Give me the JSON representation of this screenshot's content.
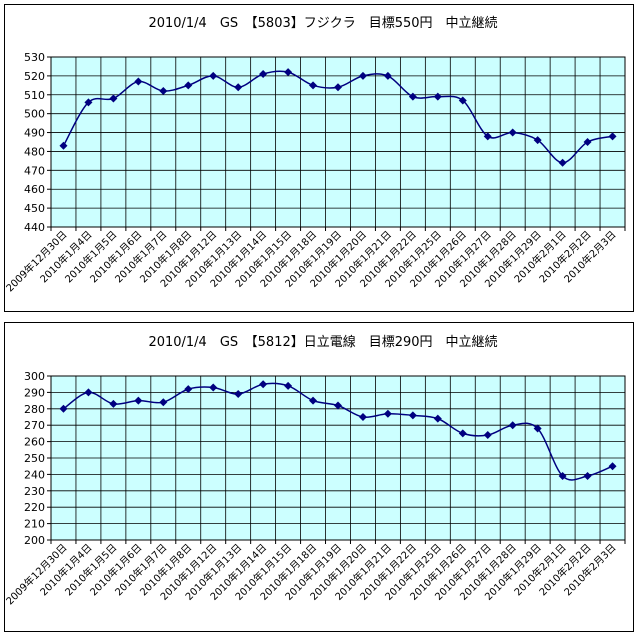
{
  "colors": {
    "plot_bg": "#ccffff",
    "grid": "#000000",
    "line": "#000080",
    "marker": "#000080"
  },
  "chart_data": [
    {
      "type": "line",
      "title": "2010/1/4　GS　【5803】フジクラ　目標550円　中立継続",
      "categories": [
        "2009年12月30日",
        "2010年1月4日",
        "2010年1月5日",
        "2010年1月6日",
        "2010年1月7日",
        "2010年1月8日",
        "2010年1月12日",
        "2010年1月13日",
        "2010年1月14日",
        "2010年1月15日",
        "2010年1月18日",
        "2010年1月19日",
        "2010年1月20日",
        "2010年1月21日",
        "2010年1月22日",
        "2010年1月25日",
        "2010年1月26日",
        "2010年1月27日",
        "2010年1月28日",
        "2010年1月29日",
        "2010年2月1日",
        "2010年2月2日",
        "2010年2月3日"
      ],
      "values": [
        483,
        506,
        508,
        517,
        512,
        515,
        520,
        514,
        521,
        522,
        515,
        514,
        520,
        520,
        509,
        509,
        507,
        488,
        490,
        486,
        474,
        485,
        488
      ],
      "ylim": [
        440,
        530
      ],
      "yticks": [
        440,
        450,
        460,
        470,
        480,
        490,
        500,
        510,
        520,
        530
      ],
      "grid": true,
      "legend": "none"
    },
    {
      "type": "line",
      "title": "2010/1/4　GS　【5812】日立電線　目標290円　中立継続",
      "categories": [
        "2009年12月30日",
        "2010年1月4日",
        "2010年1月5日",
        "2010年1月6日",
        "2010年1月7日",
        "2010年1月8日",
        "2010年1月12日",
        "2010年1月13日",
        "2010年1月14日",
        "2010年1月15日",
        "2010年1月18日",
        "2010年1月19日",
        "2010年1月20日",
        "2010年1月21日",
        "2010年1月22日",
        "2010年1月25日",
        "2010年1月26日",
        "2010年1月27日",
        "2010年1月28日",
        "2010年1月29日",
        "2010年2月1日",
        "2010年2月2日",
        "2010年2月3日"
      ],
      "values": [
        280,
        290,
        283,
        285,
        284,
        292,
        293,
        289,
        295,
        294,
        285,
        282,
        275,
        277,
        276,
        274,
        265,
        264,
        270,
        268,
        239,
        239,
        245
      ],
      "ylim": [
        200,
        300
      ],
      "yticks": [
        200,
        210,
        220,
        230,
        240,
        250,
        260,
        270,
        280,
        290,
        300
      ],
      "grid": true,
      "legend": "none"
    }
  ]
}
